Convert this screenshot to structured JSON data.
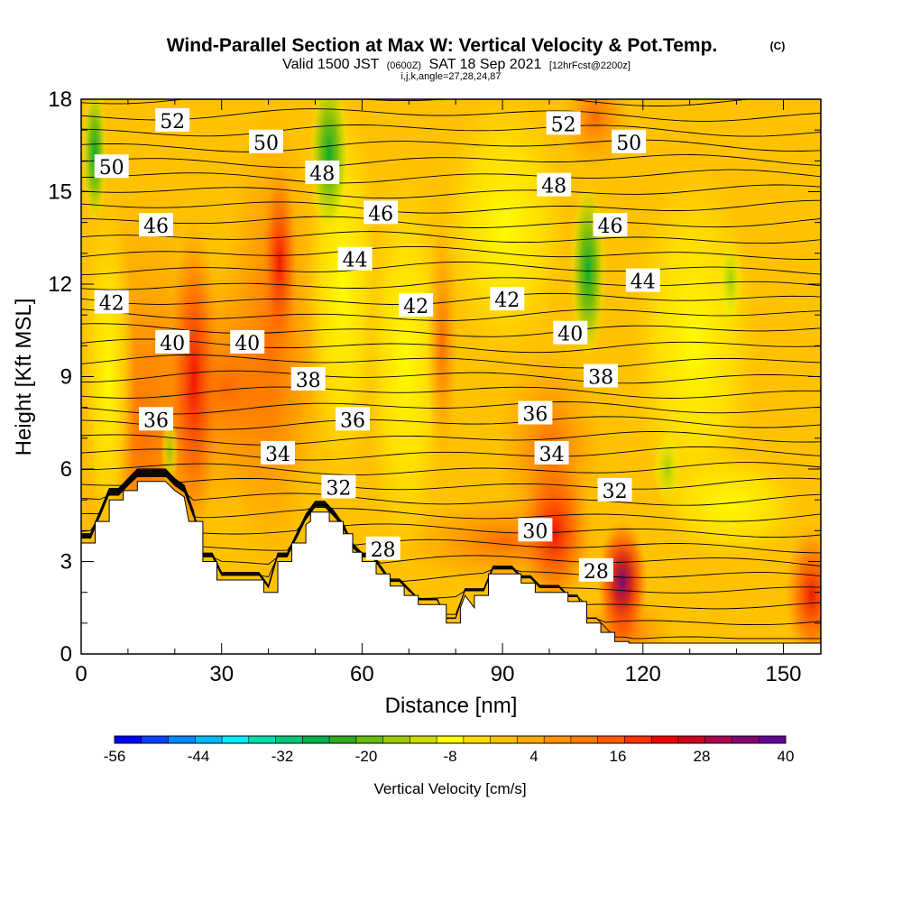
{
  "header": {
    "title": "Wind-Parallel Section at Max W: Vertical Velocity & Pot.Temp.",
    "copyright": "(C)",
    "valid_prefix": "Valid 1500 JST",
    "valid_utc": "(0600Z)",
    "valid_date": "SAT 18 Sep 2021",
    "forecast": "[12hrFcst@2200z]",
    "indices": "i,j,k,angle=27,28,24,87"
  },
  "chart_data": {
    "type": "heatmap",
    "xlabel": "Distance [nm]",
    "ylabel": "Height [Kft MSL]",
    "xlim": [
      0,
      158
    ],
    "ylim": [
      0,
      18
    ],
    "x_ticks": [
      "0",
      "30",
      "60",
      "90",
      "120",
      "150"
    ],
    "y_ticks": [
      "0",
      "3",
      "6",
      "9",
      "12",
      "15",
      "18"
    ],
    "colorbar": {
      "label": "Vertical Velocity [cm/s]",
      "tick_labels": [
        "-56",
        "-44",
        "-32",
        "-20",
        "-8",
        "4",
        "16",
        "28",
        "40"
      ],
      "min": -56,
      "max": 40,
      "colors": [
        "#0000ff",
        "#0044ff",
        "#0088ff",
        "#00bbff",
        "#00eeff",
        "#00ddaa",
        "#00c77a",
        "#00b04a",
        "#33aa22",
        "#66bb11",
        "#99cc00",
        "#ccdd00",
        "#ffff00",
        "#ffdd00",
        "#ffc000",
        "#ffaa00",
        "#ff9400",
        "#ff7a00",
        "#ff5c00",
        "#ff3300",
        "#ee0000",
        "#cc0022",
        "#aa0055",
        "#880077",
        "#660099"
      ]
    },
    "theta_labels": [
      {
        "text": "52",
        "x": 19.5,
        "y": 17.3
      },
      {
        "text": "50",
        "x": 6.5,
        "y": 15.8
      },
      {
        "text": "50",
        "x": 39.5,
        "y": 16.6
      },
      {
        "text": "48",
        "x": 51.5,
        "y": 15.6
      },
      {
        "text": "52",
        "x": 103,
        "y": 17.2
      },
      {
        "text": "50",
        "x": 117,
        "y": 16.6
      },
      {
        "text": "48",
        "x": 101,
        "y": 15.2
      },
      {
        "text": "46",
        "x": 16,
        "y": 13.9
      },
      {
        "text": "46",
        "x": 64,
        "y": 14.3
      },
      {
        "text": "46",
        "x": 113,
        "y": 13.9
      },
      {
        "text": "44",
        "x": 58.5,
        "y": 12.8
      },
      {
        "text": "44",
        "x": 120,
        "y": 12.1
      },
      {
        "text": "42",
        "x": 6.5,
        "y": 11.4
      },
      {
        "text": "42",
        "x": 71.5,
        "y": 11.3
      },
      {
        "text": "42",
        "x": 91,
        "y": 11.5
      },
      {
        "text": "40",
        "x": 19.5,
        "y": 10.1
      },
      {
        "text": "40",
        "x": 35.5,
        "y": 10.1
      },
      {
        "text": "40",
        "x": 104.5,
        "y": 10.4
      },
      {
        "text": "38",
        "x": 48.5,
        "y": 8.9
      },
      {
        "text": "38",
        "x": 111,
        "y": 9.0
      },
      {
        "text": "36",
        "x": 16,
        "y": 7.6
      },
      {
        "text": "36",
        "x": 58,
        "y": 7.6
      },
      {
        "text": "36",
        "x": 97,
        "y": 7.8
      },
      {
        "text": "34",
        "x": 42,
        "y": 6.5
      },
      {
        "text": "34",
        "x": 100.5,
        "y": 6.5
      },
      {
        "text": "32",
        "x": 55,
        "y": 5.4
      },
      {
        "text": "32",
        "x": 114,
        "y": 5.3
      },
      {
        "text": "30",
        "x": 97,
        "y": 4.0
      },
      {
        "text": "28",
        "x": 64.5,
        "y": 3.4
      },
      {
        "text": "28",
        "x": 110,
        "y": 2.7
      }
    ],
    "terrain": [
      [
        0,
        3.6
      ],
      [
        3,
        3.6
      ],
      [
        3,
        4.3
      ],
      [
        6,
        4.3
      ],
      [
        6,
        5.0
      ],
      [
        9,
        5.0
      ],
      [
        9,
        5.3
      ],
      [
        12,
        5.3
      ],
      [
        12,
        5.6
      ],
      [
        18,
        5.6
      ],
      [
        20,
        5.3
      ],
      [
        22,
        5.1
      ],
      [
        23,
        4.3
      ],
      [
        26,
        4.3
      ],
      [
        26,
        3.0
      ],
      [
        29,
        3.0
      ],
      [
        29,
        2.4
      ],
      [
        39,
        2.4
      ],
      [
        39,
        2.0
      ],
      [
        42,
        2.0
      ],
      [
        42,
        3.0
      ],
      [
        45,
        3.0
      ],
      [
        45,
        3.6
      ],
      [
        48,
        3.6
      ],
      [
        48,
        4.2
      ],
      [
        49,
        4.3
      ],
      [
        49,
        4.6
      ],
      [
        53,
        4.6
      ],
      [
        53,
        4.3
      ],
      [
        56,
        4.3
      ],
      [
        56,
        3.9
      ],
      [
        58,
        3.9
      ],
      [
        58,
        3.3
      ],
      [
        60,
        3.3
      ],
      [
        60,
        3.0
      ],
      [
        63,
        3.0
      ],
      [
        63,
        2.6
      ],
      [
        66,
        2.6
      ],
      [
        66,
        2.2
      ],
      [
        69,
        2.2
      ],
      [
        69,
        1.9
      ],
      [
        72,
        1.9
      ],
      [
        72,
        1.6
      ],
      [
        78,
        1.6
      ],
      [
        78,
        1.0
      ],
      [
        81,
        1.0
      ],
      [
        81,
        1.5
      ],
      [
        82,
        1.9
      ],
      [
        84,
        1.5
      ],
      [
        84,
        1.9
      ],
      [
        87,
        1.9
      ],
      [
        87,
        2.6
      ],
      [
        94,
        2.6
      ],
      [
        94,
        2.3
      ],
      [
        97,
        2.3
      ],
      [
        97,
        2.0
      ],
      [
        104,
        2.0
      ],
      [
        104,
        1.7
      ],
      [
        108,
        1.7
      ],
      [
        108,
        1.0
      ],
      [
        111,
        1.0
      ],
      [
        111,
        0.7
      ],
      [
        114,
        0.7
      ],
      [
        114,
        0.4
      ],
      [
        117,
        0.4
      ],
      [
        117,
        0.35
      ],
      [
        158,
        0.35
      ]
    ]
  }
}
